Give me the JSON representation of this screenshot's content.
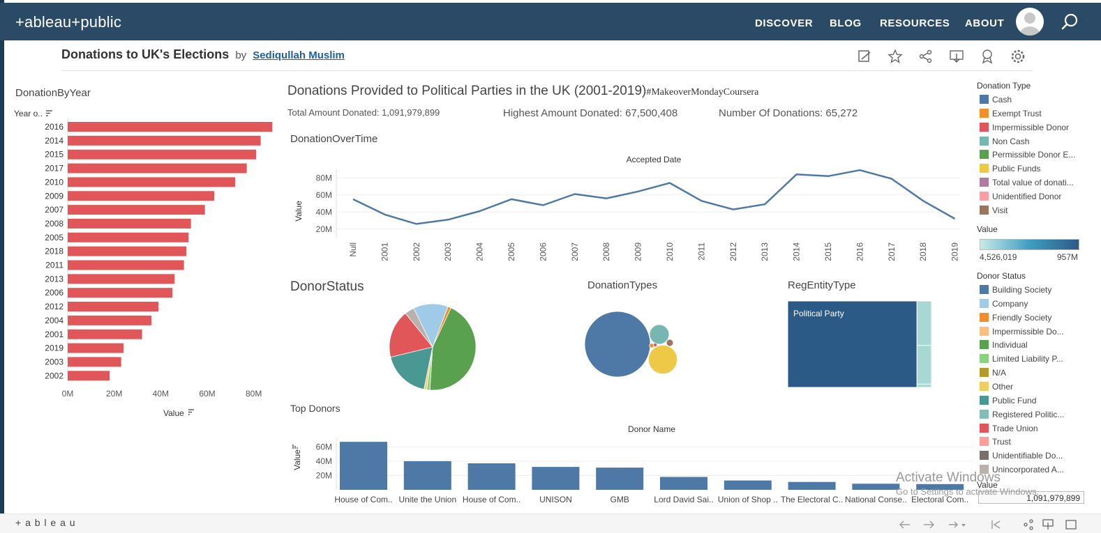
{
  "brand": "+ableau+public",
  "nav": [
    "DISCOVER",
    "BLOG",
    "RESOURCES",
    "ABOUT"
  ],
  "viz": {
    "title": "Donations to UK's Elections",
    "by": "by",
    "author": "Sediqullah Muslim"
  },
  "header": {
    "title": "Donations Provided to Political Parties in the UK (2001-2019)",
    "hashtag": "#MakeoverMondayCoursera",
    "total": "Total Amount Donated: 1,091,979,899",
    "highest": "Highest Amount Donated: 67,500,408",
    "count": "Number Of Donations: 65,272"
  },
  "sections": {
    "by_year": "DonationByYear",
    "over_time": "DonationOverTime",
    "donor_status": "DonorStatus",
    "donation_types": "DonationTypes",
    "reg_entity": "RegEntityType",
    "top_donors": "Top Donors"
  },
  "labels": {
    "year_field": "Year o..",
    "value_field": "Value",
    "accepted_date": "Accepted Date",
    "value_axis": "Value",
    "donor_name": "Donor Name",
    "political_party": "Political Party"
  },
  "legend": {
    "donation_type_title": "Donation Type",
    "donation_types": [
      {
        "label": "Cash",
        "color": "#4e79a7"
      },
      {
        "label": "Exempt Trust",
        "color": "#f28e2b"
      },
      {
        "label": "Impermissible Donor",
        "color": "#e15759"
      },
      {
        "label": "Non Cash",
        "color": "#76b7b2"
      },
      {
        "label": "Permissible Donor E...",
        "color": "#59a14f"
      },
      {
        "label": "Public Funds",
        "color": "#edc948"
      },
      {
        "label": "Total value of donati...",
        "color": "#b07aa1"
      },
      {
        "label": "Unidentified Donor",
        "color": "#ff9da7"
      },
      {
        "label": "Visit",
        "color": "#9c755f"
      }
    ],
    "value_title": "Value",
    "value_min": "4,526,019",
    "value_max": "957M",
    "donor_status_title": "Donor Status",
    "donor_statuses": [
      {
        "label": "Building Society",
        "color": "#4e79a7"
      },
      {
        "label": "Company",
        "color": "#a0cbe8"
      },
      {
        "label": "Friendly Society",
        "color": "#f28e2b"
      },
      {
        "label": "Impermissible Do...",
        "color": "#ffbe7d"
      },
      {
        "label": "Individual",
        "color": "#59a14f"
      },
      {
        "label": "Limited Liability P...",
        "color": "#8cd17d"
      },
      {
        "label": "N/A",
        "color": "#b6992d"
      },
      {
        "label": "Other",
        "color": "#f1ce63"
      },
      {
        "label": "Public Fund",
        "color": "#499894"
      },
      {
        "label": "Registered Politic...",
        "color": "#86bcb6"
      },
      {
        "label": "Trade Union",
        "color": "#e15759"
      },
      {
        "label": "Trust",
        "color": "#ff9d9a"
      },
      {
        "label": "Unidentifiable Do...",
        "color": "#79706e"
      },
      {
        "label": "Unincorporated A...",
        "color": "#bab0ac"
      }
    ],
    "value_title_2": "Value",
    "value_total": "1,091,979,899"
  },
  "watermark": {
    "line1": "Activate Windows",
    "line2": "Go to Settings to activate Windows."
  },
  "footer_brand": "+ a b l e a u",
  "chart_data": [
    {
      "type": "bar",
      "orientation": "horizontal",
      "title": "DonationByYear",
      "categories": [
        "2016",
        "2014",
        "2015",
        "2017",
        "2010",
        "2009",
        "2007",
        "2008",
        "2005",
        "2018",
        "2011",
        "2013",
        "2006",
        "2012",
        "2004",
        "2001",
        "2019",
        "2003",
        "2002"
      ],
      "values": [
        88,
        83,
        81,
        77,
        72,
        63,
        59,
        53,
        52,
        51,
        50,
        46,
        45,
        39,
        36,
        32,
        24,
        23,
        18
      ],
      "xlabel": "Value",
      "ylabel": "Year o..",
      "xticks": [
        "0M",
        "20M",
        "40M",
        "60M",
        "80M"
      ],
      "xlim": [
        0,
        90
      ],
      "color": "#e15759"
    },
    {
      "type": "line",
      "title": "DonationOverTime",
      "xlabel": "Accepted Date",
      "ylabel": "Value",
      "x": [
        "Null",
        "2001",
        "2002",
        "2003",
        "2004",
        "2005",
        "2006",
        "2007",
        "2008",
        "2009",
        "2010",
        "2011",
        "2012",
        "2013",
        "2014",
        "2015",
        "2016",
        "2017",
        "2018",
        "2019"
      ],
      "values": [
        55,
        37,
        26,
        31,
        41,
        55,
        48,
        61,
        56,
        64,
        74,
        53,
        43,
        49,
        84,
        82,
        89,
        79,
        53,
        32
      ],
      "yticks": [
        "20M",
        "40M",
        "60M",
        "80M"
      ],
      "ylim": [
        10,
        90
      ],
      "color": "#4e79a7"
    },
    {
      "type": "pie",
      "title": "DonorStatus",
      "slices": [
        {
          "label": "Individual",
          "value": 44,
          "color": "#59a14f"
        },
        {
          "label": "Limited Liability P...",
          "value": 1.2,
          "color": "#8cd17d"
        },
        {
          "label": "Other",
          "value": 1,
          "color": "#f1ce63"
        },
        {
          "label": "Public Fund",
          "value": 18,
          "color": "#499894"
        },
        {
          "label": "Trade Union",
          "value": 18,
          "color": "#e15759"
        },
        {
          "label": "Unincorporated A...",
          "value": 3.6,
          "color": "#bab0ac"
        },
        {
          "label": "Company",
          "value": 13,
          "color": "#a0cbe8"
        },
        {
          "label": "Friendly Society",
          "value": 1.2,
          "color": "#f28e2b"
        }
      ]
    },
    {
      "type": "bubble",
      "title": "DonationTypes",
      "bubbles": [
        {
          "label": "Cash",
          "value": 62,
          "color": "#4e79a7"
        },
        {
          "label": "Public Funds",
          "value": 12,
          "color": "#edc948"
        },
        {
          "label": "Non Cash",
          "value": 5.5,
          "color": "#76b7b2"
        },
        {
          "label": "Visit",
          "value": 0.7,
          "color": "#9c755f"
        },
        {
          "label": "Exempt Trust",
          "value": 0.3,
          "color": "#f28e2b"
        },
        {
          "label": "Impermissible Donor",
          "value": 0.2,
          "color": "#e15759"
        }
      ]
    },
    {
      "type": "treemap",
      "title": "RegEntityType",
      "cells": [
        {
          "label": "Political Party",
          "value": 957,
          "color": "#2c5a87"
        },
        {
          "label": "",
          "value": 55,
          "color": "#a8d8d2"
        },
        {
          "label": "",
          "value": 48,
          "color": "#a8d8d2"
        },
        {
          "label": "",
          "value": 4,
          "color": "#a8d8d2"
        }
      ]
    },
    {
      "type": "bar",
      "title": "Top Donors",
      "xlabel": "Donor Name",
      "ylabel": "Value",
      "categories": [
        "House of Com..",
        "Unite the Union",
        "House of Com..",
        "UNISON",
        "GMB",
        "Lord David Sai..",
        "Union of Shop ..",
        "The Electoral C..",
        "National Conse..",
        "Electoral Com.."
      ],
      "values": [
        67,
        40,
        37,
        32,
        31,
        18,
        13,
        11,
        8.5,
        8
      ],
      "yticks": [
        "20M",
        "40M",
        "60M"
      ],
      "ylim": [
        0,
        72
      ],
      "color": "#4e79a7"
    }
  ]
}
